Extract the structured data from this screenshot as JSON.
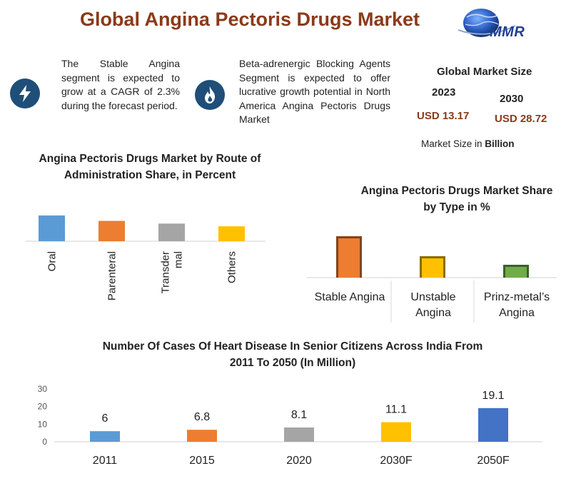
{
  "title": "Global Angina Pectoris Drugs Market",
  "logo": {
    "text": "MMR"
  },
  "highlights": [
    {
      "icon": "lightning-bolt-icon",
      "text": "The Stable Angina segment is expected to grow at a CAGR of 2.3% during the forecast period."
    },
    {
      "icon": "flame-icon",
      "text": "Beta-adrenergic Blocking Agents Segment is expected to offer lucrative growth potential in North America Angina Pectoris Drugs Market"
    }
  ],
  "market_size": {
    "heading": "Global Market Size",
    "year_start": "2023",
    "year_end": "2030",
    "value_start": "USD 13.17",
    "value_end": "USD 28.72",
    "note_prefix": "Market Size in",
    "note_unit": "Billion"
  },
  "colors": {
    "title": "#8a3a1a",
    "badge": "#1f4e79",
    "value": "#8a3a1a"
  },
  "chart_data": [
    {
      "type": "bar",
      "title": "Angina Pectoris Drugs Market by Route of Administration Share, in Percent",
      "title_lines": [
        "Angina Pectoris Drugs Market by Route of",
        "Administration Share, in Percent"
      ],
      "categories": [
        "Oral",
        "Parentera l",
        "Transder mal",
        "Others"
      ],
      "category_lines": [
        [
          "Oral"
        ],
        [
          "Parenteral"
        ],
        [
          "Transder",
          "mal"
        ],
        [
          "Others"
        ]
      ],
      "values": [
        38,
        30,
        26,
        22
      ],
      "colors": [
        "#5b9bd5",
        "#ed7d31",
        "#a5a5a5",
        "#ffc000"
      ],
      "tick_label_rotation": "vertical"
    },
    {
      "type": "bar",
      "title": "Angina Pectoris Drugs Market Share by Type in %",
      "title_lines": [
        "Angina Pectoris Drugs Market Share",
        "by Type in %"
      ],
      "categories": [
        "Stable Angina",
        "Unstable Angina",
        "Prinz-metal's Angina"
      ],
      "category_lines": [
        [
          "Stable Angina"
        ],
        [
          "Unstable",
          "Angina"
        ],
        [
          "Prinz-metal’s",
          "Angina"
        ]
      ],
      "values": [
        58,
        30,
        18
      ],
      "colors": [
        "#ed7d31",
        "#ffc000",
        "#70ad47"
      ]
    },
    {
      "type": "bar",
      "title": "Number Of Cases Of Heart Disease In Senior Citizens Across India From 2011 To 2050 (In Million)",
      "title_lines": [
        "Number Of Cases Of Heart Disease In Senior Citizens Across India From",
        "2011 To 2050 (In Million)"
      ],
      "categories": [
        "2011",
        "2015",
        "2020",
        "2030F",
        "2050F"
      ],
      "values": [
        6,
        6.8,
        8.1,
        11.1,
        19.1
      ],
      "value_labels": [
        "6",
        "6.8",
        "8.1",
        "11.1",
        "19.1"
      ],
      "colors": [
        "#5b9bd5",
        "#ed7d31",
        "#a5a5a5",
        "#ffc000",
        "#4472c4"
      ],
      "yticks": [
        0,
        10,
        20,
        30
      ],
      "ylim": [
        0,
        30
      ]
    }
  ]
}
